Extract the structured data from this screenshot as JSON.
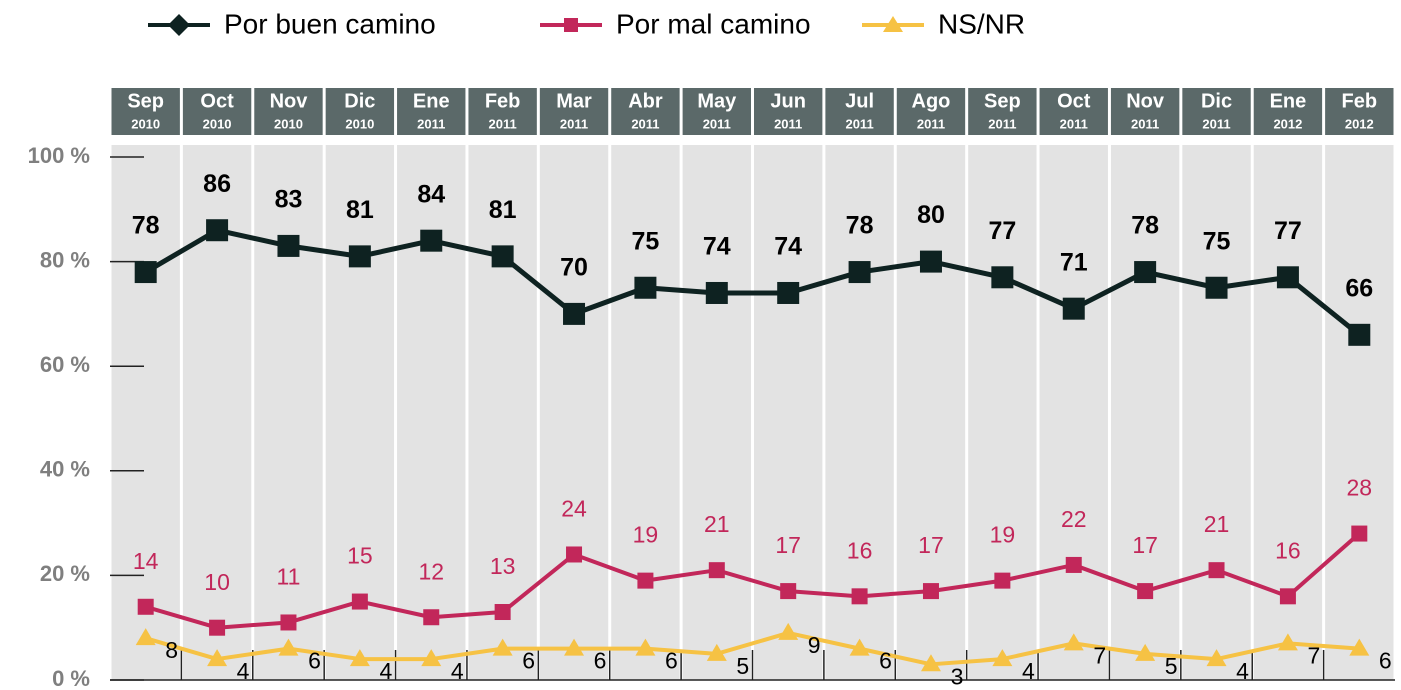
{
  "chart_data": {
    "type": "line",
    "categories": [
      "Sep",
      "Oct",
      "Nov",
      "Dic",
      "Ene",
      "Feb",
      "Mar",
      "Abr",
      "May",
      "Jun",
      "Jul",
      "Ago",
      "Sep",
      "Oct",
      "Nov",
      "Dic",
      "Ene",
      "Feb"
    ],
    "category_years": [
      "2010",
      "2010",
      "2010",
      "2010",
      "2011",
      "2011",
      "2011",
      "2011",
      "2011",
      "2011",
      "2011",
      "2011",
      "2011",
      "2011",
      "2011",
      "2011",
      "2012",
      "2012"
    ],
    "series": [
      {
        "name": "Por buen camino",
        "color": "#0e2221",
        "marker": "square",
        "values": [
          78,
          86,
          83,
          81,
          84,
          81,
          70,
          75,
          74,
          74,
          78,
          80,
          77,
          71,
          78,
          75,
          77,
          66
        ]
      },
      {
        "name": "Por mal camino",
        "color": "#c2275a",
        "marker": "square",
        "values": [
          14,
          10,
          11,
          15,
          12,
          13,
          24,
          19,
          21,
          17,
          16,
          17,
          19,
          22,
          17,
          21,
          16,
          28
        ]
      },
      {
        "name": "NS/NR",
        "color": "#f6c244",
        "marker": "triangle",
        "values": [
          8,
          4,
          6,
          4,
          4,
          6,
          6,
          6,
          5,
          9,
          6,
          3,
          4,
          7,
          5,
          4,
          7,
          6
        ]
      }
    ],
    "ylim": [
      0,
      100
    ],
    "yticks": [
      {
        "value": 0,
        "label": "0 %"
      },
      {
        "value": 20,
        "label": "20 %"
      },
      {
        "value": 40,
        "label": "40 %"
      },
      {
        "value": 60,
        "label": "60 %"
      },
      {
        "value": 80,
        "label": "80 %"
      },
      {
        "value": 100,
        "label": "100 %"
      }
    ],
    "legend": "top"
  }
}
